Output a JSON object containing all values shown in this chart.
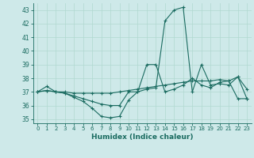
{
  "xlabel": "Humidex (Indice chaleur)",
  "background_color": "#cee9e9",
  "line_color": "#1a6b60",
  "grid_color": "#b0d8d0",
  "xlim": [
    -0.5,
    23.5
  ],
  "ylim": [
    34.7,
    43.5
  ],
  "yticks": [
    35,
    36,
    37,
    38,
    39,
    40,
    41,
    42,
    43
  ],
  "xticks": [
    0,
    1,
    2,
    3,
    4,
    5,
    6,
    7,
    8,
    9,
    10,
    11,
    12,
    13,
    14,
    15,
    16,
    17,
    18,
    19,
    20,
    21,
    22,
    23
  ],
  "lines": [
    [
      37.0,
      37.4,
      37.0,
      36.9,
      36.6,
      36.3,
      35.8,
      35.2,
      35.1,
      35.2,
      36.4,
      37.0,
      37.2,
      37.3,
      42.2,
      43.0,
      43.2,
      37.0,
      39.0,
      37.5,
      37.6,
      37.5,
      38.1,
      37.2
    ],
    [
      37.0,
      37.1,
      37.0,
      37.0,
      36.9,
      36.9,
      36.9,
      36.9,
      36.9,
      37.0,
      37.1,
      37.2,
      37.3,
      37.4,
      37.5,
      37.6,
      37.7,
      37.8,
      37.8,
      37.8,
      37.9,
      37.8,
      36.5,
      36.5
    ],
    [
      37.0,
      37.1,
      37.0,
      36.9,
      36.7,
      36.5,
      36.3,
      36.1,
      36.0,
      36.0,
      37.0,
      37.0,
      39.0,
      39.0,
      37.0,
      37.2,
      37.5,
      38.0,
      37.5,
      37.3,
      37.7,
      37.8,
      38.1,
      36.5
    ]
  ]
}
